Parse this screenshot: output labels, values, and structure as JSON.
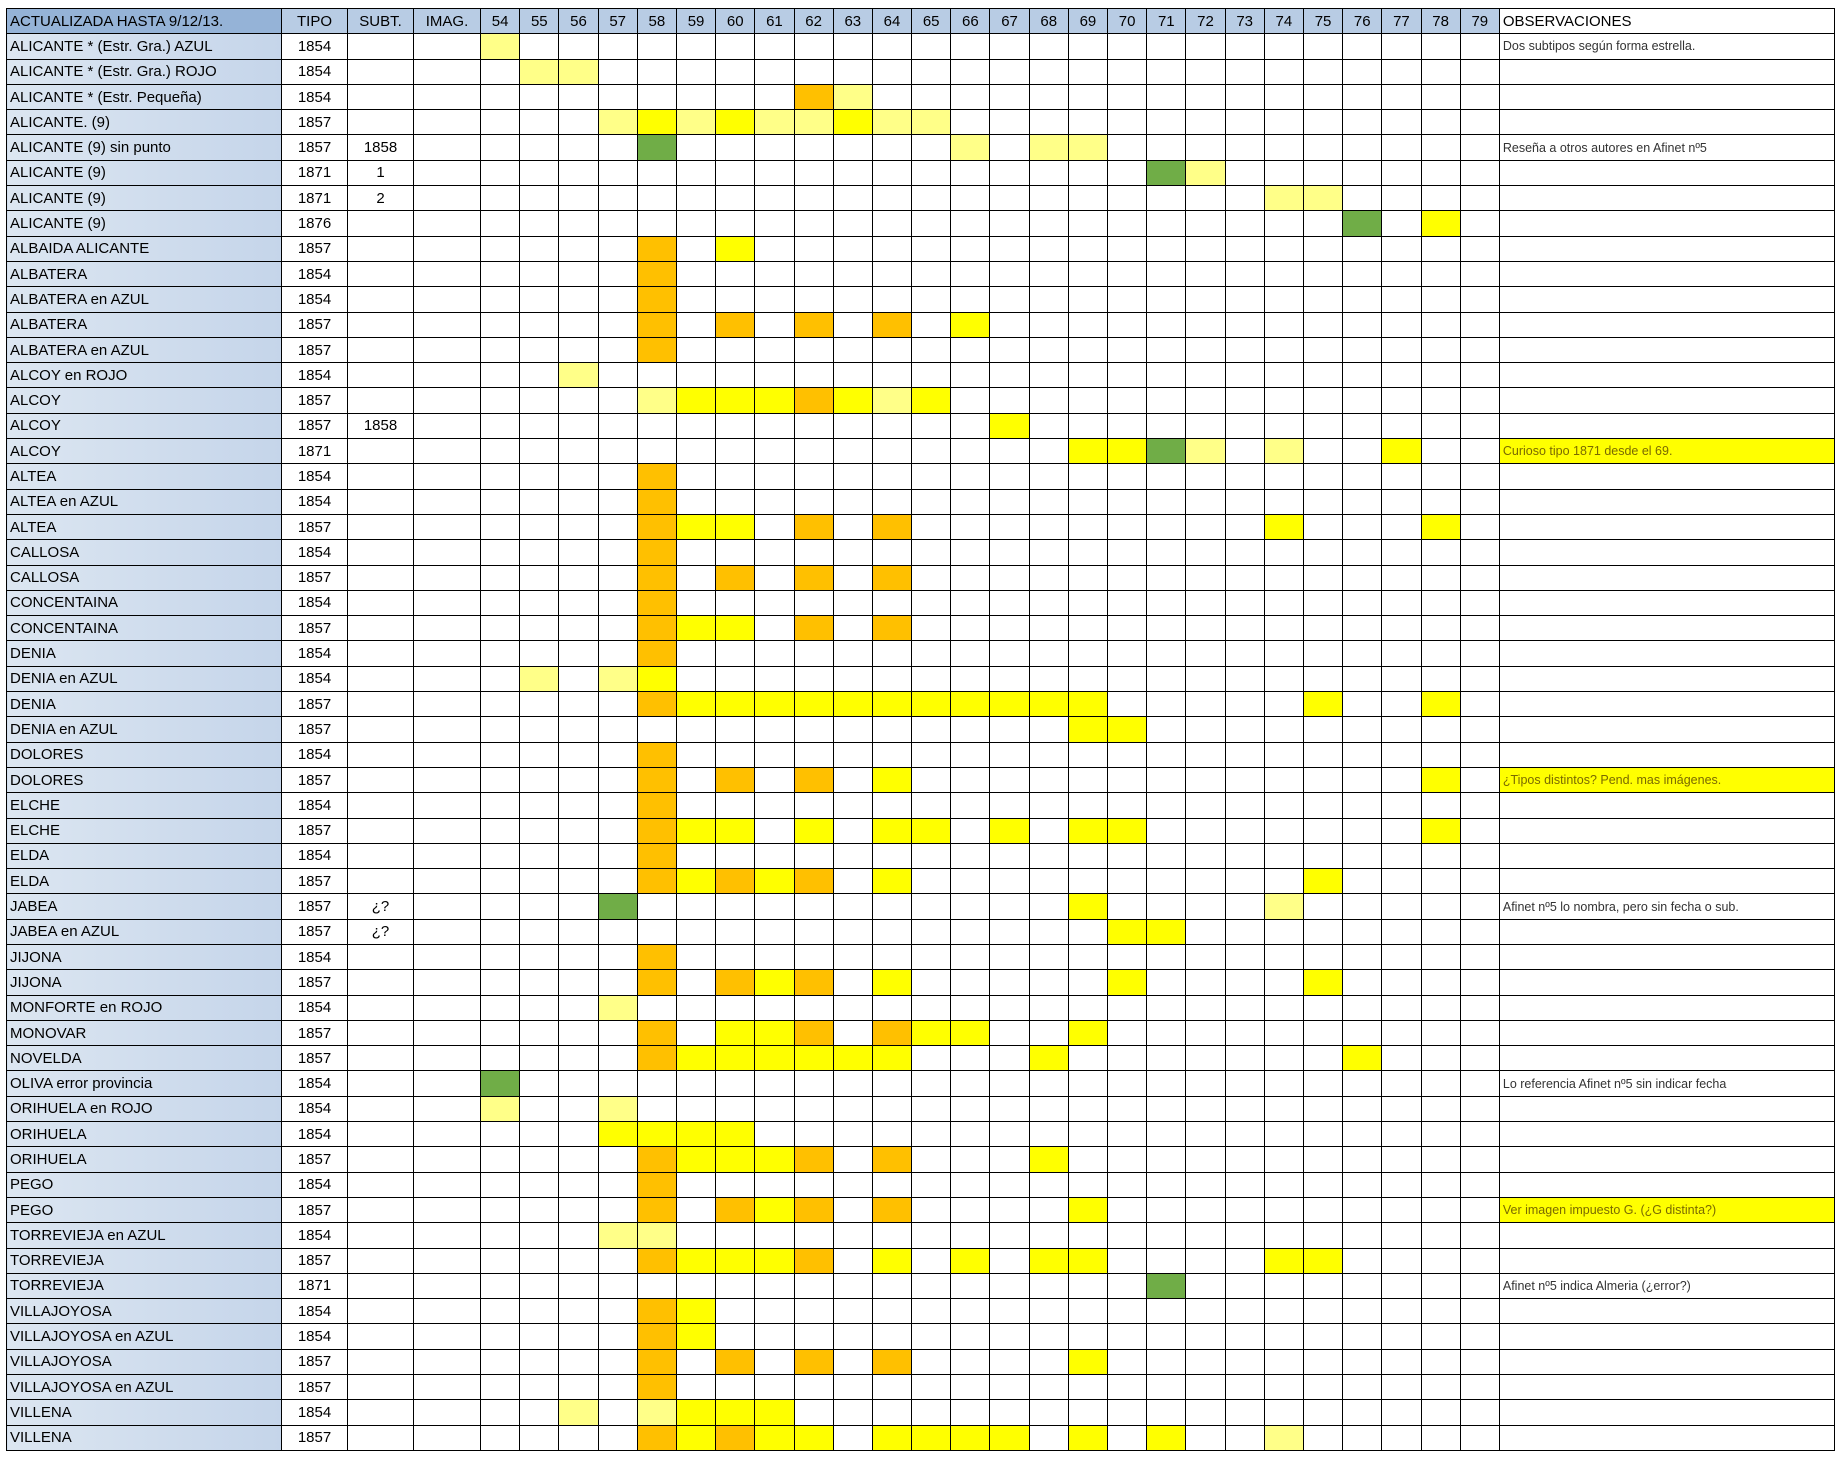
{
  "colors": {
    "p": "#ffff88",
    "y": "#ffff00",
    "o": "#ffc000",
    "g": "#70ad47"
  },
  "header": {
    "title": "ACTUALIZADA HASTA 9/12/13.",
    "tipo": "TIPO",
    "subt": "SUBT.",
    "imag": "IMAG.",
    "years": [
      "54",
      "55",
      "56",
      "57",
      "58",
      "59",
      "60",
      "61",
      "62",
      "63",
      "64",
      "65",
      "66",
      "67",
      "68",
      "69",
      "70",
      "71",
      "72",
      "73",
      "74",
      "75",
      "76",
      "77",
      "78",
      "79"
    ],
    "obs": "OBSERVACIONES"
  },
  "rows": [
    {
      "name": "ALICANTE * (Estr. Gra.) AZUL",
      "tipo": "1854",
      "subt": "",
      "marks": {
        "54": "p"
      },
      "obs": "Dos subtipos según forma estrella."
    },
    {
      "name": "ALICANTE * (Estr. Gra.) ROJO",
      "tipo": "1854",
      "subt": "",
      "marks": {
        "55": "p",
        "56": "p"
      },
      "obs": ""
    },
    {
      "name": "ALICANTE * (Estr. Pequeña)",
      "tipo": "1854",
      "subt": "",
      "marks": {
        "62": "o",
        "63": "p"
      },
      "obs": ""
    },
    {
      "name": "ALICANTE. (9)",
      "tipo": "1857",
      "subt": "",
      "marks": {
        "57": "p",
        "58": "y",
        "59": "p",
        "60": "y",
        "61": "p",
        "62": "p",
        "63": "y",
        "64": "p",
        "65": "p"
      },
      "obs": ""
    },
    {
      "name": "ALICANTE (9) sin punto",
      "tipo": "1857",
      "subt": "1858",
      "marks": {
        "58": "g",
        "66": "p",
        "68": "p",
        "69": "p"
      },
      "obs": "Reseña a otros autores en Afinet nº5"
    },
    {
      "name": "ALICANTE (9)",
      "tipo": "1871",
      "subt": "1",
      "marks": {
        "71": "g",
        "72": "p"
      },
      "obs": ""
    },
    {
      "name": "ALICANTE (9)",
      "tipo": "1871",
      "subt": "2",
      "marks": {
        "74": "p",
        "75": "p"
      },
      "obs": ""
    },
    {
      "name": "ALICANTE (9)",
      "tipo": "1876",
      "subt": "",
      "marks": {
        "76": "g",
        "78": "y"
      },
      "obs": ""
    },
    {
      "name": "ALBAIDA ALICANTE",
      "tipo": "1857",
      "subt": "",
      "marks": {
        "58": "o",
        "60": "y"
      },
      "obs": ""
    },
    {
      "name": "ALBATERA",
      "tipo": "1854",
      "subt": "",
      "marks": {
        "58": "o"
      },
      "obs": ""
    },
    {
      "name": "ALBATERA en AZUL",
      "tipo": "1854",
      "subt": "",
      "marks": {
        "58": "o"
      },
      "obs": ""
    },
    {
      "name": "ALBATERA",
      "tipo": "1857",
      "subt": "",
      "marks": {
        "58": "o",
        "60": "o",
        "62": "o",
        "64": "o",
        "66": "y"
      },
      "obs": ""
    },
    {
      "name": "ALBATERA en AZUL",
      "tipo": "1857",
      "subt": "",
      "marks": {
        "58": "o"
      },
      "obs": ""
    },
    {
      "name": "ALCOY en ROJO",
      "tipo": "1854",
      "subt": "",
      "marks": {
        "56": "p"
      },
      "obs": ""
    },
    {
      "name": "ALCOY",
      "tipo": "1857",
      "subt": "",
      "marks": {
        "58": "p",
        "59": "y",
        "60": "y",
        "61": "y",
        "62": "o",
        "63": "y",
        "64": "p",
        "65": "y"
      },
      "obs": ""
    },
    {
      "name": "ALCOY",
      "tipo": "1857",
      "subt": "1858",
      "marks": {
        "67": "y"
      },
      "obs": ""
    },
    {
      "name": "ALCOY",
      "tipo": "1871",
      "subt": "",
      "marks": {
        "69": "y",
        "70": "y",
        "71": "g",
        "72": "p",
        "74": "p",
        "77": "y"
      },
      "obs": "Curioso tipo 1871 desde el 69.",
      "obs_hl": true
    },
    {
      "name": "ALTEA",
      "tipo": "1854",
      "subt": "",
      "marks": {
        "58": "o"
      },
      "obs": ""
    },
    {
      "name": "ALTEA en AZUL",
      "tipo": "1854",
      "subt": "",
      "marks": {
        "58": "o"
      },
      "obs": ""
    },
    {
      "name": "ALTEA",
      "tipo": "1857",
      "subt": "",
      "marks": {
        "58": "o",
        "59": "y",
        "60": "y",
        "62": "o",
        "64": "o",
        "74": "y",
        "78": "y"
      },
      "obs": ""
    },
    {
      "name": "CALLOSA",
      "tipo": "1854",
      "subt": "",
      "marks": {
        "58": "o"
      },
      "obs": ""
    },
    {
      "name": "CALLOSA",
      "tipo": "1857",
      "subt": "",
      "marks": {
        "58": "o",
        "60": "o",
        "62": "o",
        "64": "o"
      },
      "obs": ""
    },
    {
      "name": "CONCENTAINA",
      "tipo": "1854",
      "subt": "",
      "marks": {
        "58": "o"
      },
      "obs": ""
    },
    {
      "name": "CONCENTAINA",
      "tipo": "1857",
      "subt": "",
      "marks": {
        "58": "o",
        "59": "y",
        "60": "y",
        "62": "o",
        "64": "o"
      },
      "obs": ""
    },
    {
      "name": "DENIA",
      "tipo": "1854",
      "subt": "",
      "marks": {
        "58": "o"
      },
      "obs": ""
    },
    {
      "name": "DENIA en AZUL",
      "tipo": "1854",
      "subt": "",
      "marks": {
        "55": "p",
        "57": "p",
        "58": "y"
      },
      "obs": ""
    },
    {
      "name": "DENIA",
      "tipo": "1857",
      "subt": "",
      "marks": {
        "58": "o",
        "59": "y",
        "60": "y",
        "61": "y",
        "62": "y",
        "63": "y",
        "64": "y",
        "65": "y",
        "66": "y",
        "67": "y",
        "68": "y",
        "69": "y",
        "75": "y",
        "78": "y"
      },
      "obs": ""
    },
    {
      "name": "DENIA en AZUL",
      "tipo": "1857",
      "subt": "",
      "marks": {
        "69": "y",
        "70": "y"
      },
      "obs": ""
    },
    {
      "name": "DOLORES",
      "tipo": "1854",
      "subt": "",
      "marks": {
        "58": "o"
      },
      "obs": ""
    },
    {
      "name": "DOLORES",
      "tipo": "1857",
      "subt": "",
      "marks": {
        "58": "o",
        "60": "o",
        "62": "o",
        "64": "y",
        "78": "y"
      },
      "obs": "¿Tipos distintos? Pend. mas imágenes.",
      "obs_hl": true
    },
    {
      "name": "ELCHE",
      "tipo": "1854",
      "subt": "",
      "marks": {
        "58": "o"
      },
      "obs": ""
    },
    {
      "name": "ELCHE",
      "tipo": "1857",
      "subt": "",
      "marks": {
        "58": "o",
        "59": "y",
        "60": "y",
        "62": "y",
        "64": "y",
        "65": "y",
        "67": "y",
        "69": "y",
        "70": "y",
        "78": "y"
      },
      "obs": ""
    },
    {
      "name": "ELDA",
      "tipo": "1854",
      "subt": "",
      "marks": {
        "58": "o"
      },
      "obs": ""
    },
    {
      "name": "ELDA",
      "tipo": "1857",
      "subt": "",
      "marks": {
        "58": "o",
        "59": "y",
        "60": "o",
        "61": "y",
        "62": "o",
        "64": "y",
        "75": "y"
      },
      "obs": ""
    },
    {
      "name": "JABEA",
      "tipo": "1857",
      "subt": "¿?",
      "marks": {
        "57": "g",
        "69": "y",
        "74": "p"
      },
      "obs": "Afinet nº5 lo nombra, pero sin fecha o sub."
    },
    {
      "name": "JABEA en AZUL",
      "tipo": "1857",
      "subt": "¿?",
      "marks": {
        "70": "y",
        "71": "y"
      },
      "obs": ""
    },
    {
      "name": "JIJONA",
      "tipo": "1854",
      "subt": "",
      "marks": {
        "58": "o"
      },
      "obs": ""
    },
    {
      "name": "JIJONA",
      "tipo": "1857",
      "subt": "",
      "marks": {
        "58": "o",
        "60": "o",
        "61": "y",
        "62": "o",
        "64": "y",
        "70": "y",
        "75": "y"
      },
      "obs": ""
    },
    {
      "name": "MONFORTE en ROJO",
      "tipo": "1854",
      "subt": "",
      "marks": {
        "57": "p"
      },
      "obs": ""
    },
    {
      "name": "MONOVAR",
      "tipo": "1857",
      "subt": "",
      "marks": {
        "58": "o",
        "60": "y",
        "61": "y",
        "62": "o",
        "64": "o",
        "65": "y",
        "66": "y",
        "69": "y"
      },
      "obs": ""
    },
    {
      "name": "NOVELDA",
      "tipo": "1857",
      "subt": "",
      "marks": {
        "58": "o",
        "59": "y",
        "60": "y",
        "61": "y",
        "62": "y",
        "63": "y",
        "64": "y",
        "68": "y",
        "76": "y"
      },
      "obs": ""
    },
    {
      "name": "OLIVA error provincia",
      "tipo": "1854",
      "subt": "",
      "marks": {
        "54": "g"
      },
      "obs": "Lo referencia Afinet nº5 sin indicar fecha"
    },
    {
      "name": "ORIHUELA en ROJO",
      "tipo": "1854",
      "subt": "",
      "marks": {
        "54": "p",
        "57": "p"
      },
      "obs": ""
    },
    {
      "name": "ORIHUELA",
      "tipo": "1854",
      "subt": "",
      "marks": {
        "57": "y",
        "58": "y",
        "59": "y",
        "60": "y"
      },
      "obs": ""
    },
    {
      "name": "ORIHUELA",
      "tipo": "1857",
      "subt": "",
      "marks": {
        "58": "o",
        "59": "y",
        "60": "y",
        "61": "y",
        "62": "o",
        "64": "o",
        "68": "y"
      },
      "obs": ""
    },
    {
      "name": "PEGO",
      "tipo": "1854",
      "subt": "",
      "marks": {
        "58": "o"
      },
      "obs": ""
    },
    {
      "name": "PEGO",
      "tipo": "1857",
      "subt": "",
      "marks": {
        "58": "o",
        "60": "o",
        "61": "y",
        "62": "o",
        "64": "o",
        "69": "y"
      },
      "obs": "Ver imagen impuesto G. (¿G distinta?)",
      "obs_hl": true
    },
    {
      "name": "TORREVIEJA en AZUL",
      "tipo": "1854",
      "subt": "",
      "marks": {
        "57": "p",
        "58": "p"
      },
      "obs": ""
    },
    {
      "name": "TORREVIEJA",
      "tipo": "1857",
      "subt": "",
      "marks": {
        "58": "o",
        "59": "y",
        "60": "y",
        "61": "y",
        "62": "o",
        "64": "y",
        "66": "y",
        "68": "y",
        "69": "y",
        "74": "y",
        "75": "y"
      },
      "obs": ""
    },
    {
      "name": "TORREVIEJA",
      "tipo": "1871",
      "subt": "",
      "marks": {
        "71": "g"
      },
      "obs": "Afinet nº5 indica Almeria (¿error?)"
    },
    {
      "name": "VILLAJOYOSA",
      "tipo": "1854",
      "subt": "",
      "marks": {
        "58": "o",
        "59": "y"
      },
      "obs": ""
    },
    {
      "name": "VILLAJOYOSA en AZUL",
      "tipo": "1854",
      "subt": "",
      "marks": {
        "58": "o",
        "59": "y"
      },
      "obs": ""
    },
    {
      "name": "VILLAJOYOSA",
      "tipo": "1857",
      "subt": "",
      "marks": {
        "58": "o",
        "60": "o",
        "62": "o",
        "64": "o",
        "69": "y"
      },
      "obs": ""
    },
    {
      "name": "VILLAJOYOSA en AZUL",
      "tipo": "1857",
      "subt": "",
      "marks": {
        "58": "o"
      },
      "obs": ""
    },
    {
      "name": "VILLENA",
      "tipo": "1854",
      "subt": "",
      "marks": {
        "56": "p",
        "58": "p",
        "59": "y",
        "60": "y",
        "61": "y"
      },
      "obs": ""
    },
    {
      "name": "VILLENA",
      "tipo": "1857",
      "subt": "",
      "marks": {
        "58": "o",
        "59": "y",
        "60": "o",
        "61": "y",
        "62": "y",
        "64": "y",
        "65": "y",
        "66": "y",
        "67": "y",
        "69": "y",
        "71": "y",
        "74": "p"
      },
      "obs": ""
    }
  ]
}
